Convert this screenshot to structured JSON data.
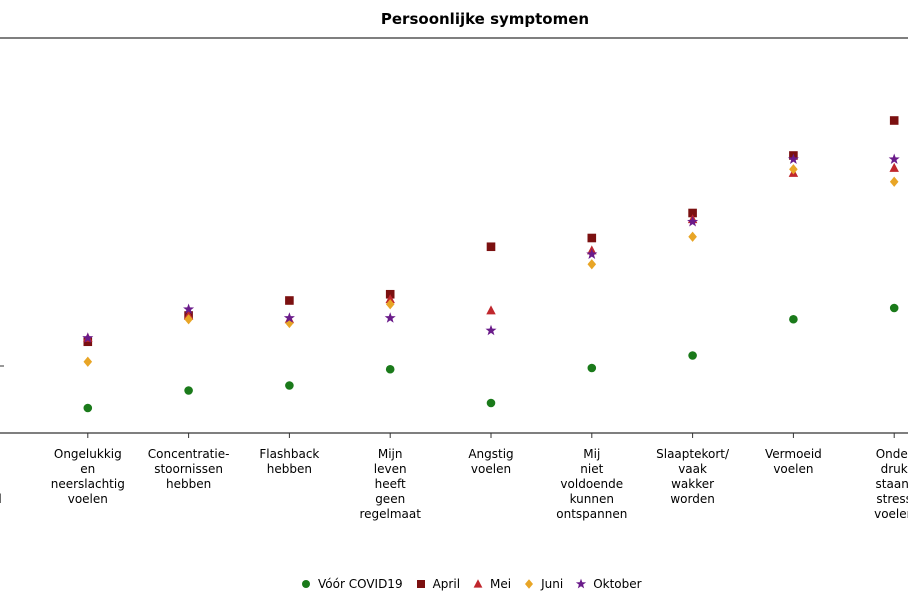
{
  "chart_data": {
    "type": "scatter",
    "title": "Persoonlijke symptomen",
    "xlabel": "",
    "ylabel": "",
    "ylim": [
      0,
      60
    ],
    "grid": false,
    "legend_position": "bottom",
    "categories": [
      "...f\n...en\n\n...eel\n...r",
      "Ongelukkig\nen\nneerslachtig\nvoelen",
      "Concentratie-\nstoornissen\nhebben",
      "Flashback\nhebben",
      "Mijn\nleven\nheeft\ngeen\nregelmaat",
      "Angstig\nvoelen",
      "Mij\nniet\nvoldoende\nkunnen\nontspannen",
      "Slaaptekort/\nvaak\nwakker\nworden",
      "Vermoeid\nvoelen",
      "Onder\ndruk\nstaan/\nstress\nvoelen"
    ],
    "series": [
      {
        "name": "Vóór COVID19",
        "color": "#1a7a1a",
        "marker": "circle",
        "values": [
          null,
          2,
          3.4,
          3.8,
          5.1,
          2.4,
          5.2,
          6.2,
          9.1,
          10
        ]
      },
      {
        "name": "April",
        "color": "#7b1010",
        "marker": "square",
        "values": [
          null,
          7.3,
          9.4,
          10.6,
          11.1,
          14.9,
          15.6,
          17.6,
          22.2,
          25
        ]
      },
      {
        "name": "Mei",
        "color": "#c0272d",
        "marker": "triangle",
        "values": [
          null,
          7.6,
          9.4,
          9.1,
          10.7,
          9.8,
          14.6,
          17.1,
          20.8,
          21.2
        ]
      },
      {
        "name": "Juni",
        "color": "#e8a526",
        "marker": "diamond",
        "values": [
          null,
          5.7,
          9.1,
          8.8,
          10.3,
          null,
          13.5,
          15.7,
          21.1,
          20.1
        ]
      },
      {
        "name": "Oktober",
        "color": "#6a1b8a",
        "marker": "star",
        "values": [
          null,
          7.6,
          9.9,
          9.2,
          9.2,
          8.2,
          14.3,
          16.9,
          21.9,
          21.9
        ]
      }
    ]
  }
}
